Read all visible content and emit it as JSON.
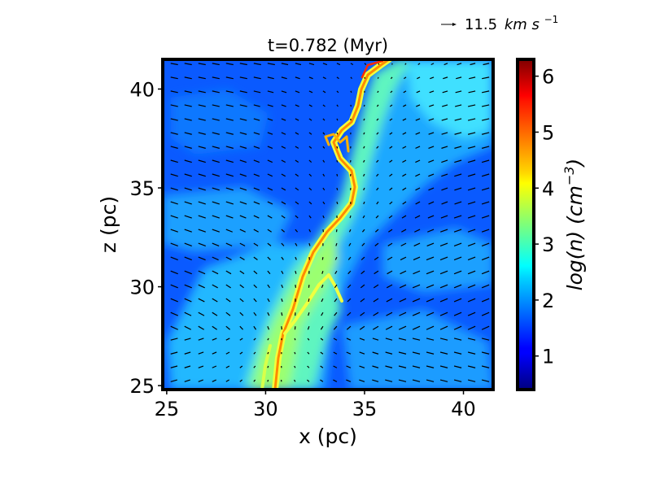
{
  "chart_data": {
    "type": "heatmap",
    "title": "t=0.782 (Myr)",
    "xlabel": "x (pc)",
    "ylabel": "z (pc)",
    "xlim": [
      24.8,
      41.5
    ],
    "ylim": [
      24.8,
      41.5
    ],
    "x_ticks": [
      "25",
      "30",
      "35",
      "40"
    ],
    "y_ticks": [
      "25",
      "30",
      "35",
      "40"
    ],
    "x_tick_values": [
      25,
      30,
      35,
      40
    ],
    "y_tick_values": [
      25,
      30,
      35,
      40
    ],
    "colorbar": {
      "label": "log(n) (cm⁻³)",
      "label_main": "log(n) (cm",
      "label_exp": "−3",
      "label_close": ")",
      "range": [
        0.4,
        6.3
      ],
      "ticks": [
        "1",
        "2",
        "3",
        "4",
        "5",
        "6"
      ],
      "tick_values": [
        1,
        2,
        3,
        4,
        5,
        6
      ],
      "colormap": "jet"
    },
    "velocity_reference": {
      "value": "11.5",
      "unit": "km s",
      "exponent": "−1"
    },
    "filament_ridge": [
      {
        "x": 30.5,
        "z": 24.8
      },
      {
        "x": 30.9,
        "z": 27.0
      },
      {
        "x": 31.5,
        "z": 29.0
      },
      {
        "x": 32.2,
        "z": 31.0
      },
      {
        "x": 33.1,
        "z": 32.6
      },
      {
        "x": 34.2,
        "z": 34.3
      },
      {
        "x": 34.0,
        "z": 36.0
      },
      {
        "x": 34.3,
        "z": 38.5
      },
      {
        "x": 35.2,
        "z": 40.5
      },
      {
        "x": 36.5,
        "z": 41.5
      }
    ],
    "background_log_n": 1.3,
    "peak_log_n": 5.6
  }
}
